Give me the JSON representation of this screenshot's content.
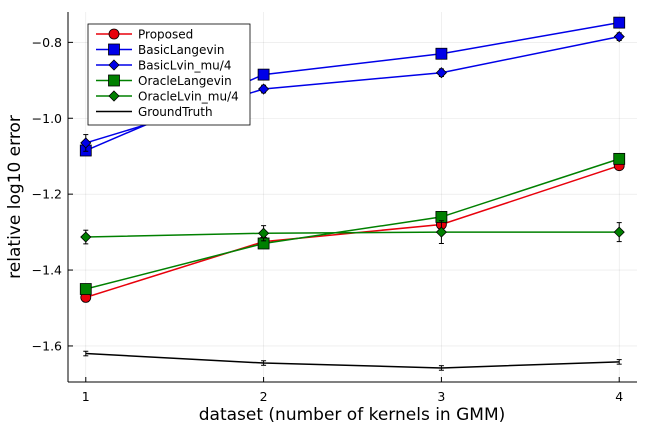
{
  "chart_data": {
    "type": "line",
    "title": "",
    "xlabel": "dataset (number of kernels in GMM)",
    "ylabel": "relative log10 error",
    "x": [
      1,
      2,
      3,
      4
    ],
    "x_ticks": [
      1,
      2,
      3,
      4
    ],
    "x_tick_labels": [
      "1",
      "2",
      "3",
      "4"
    ],
    "xlim": [
      0.9,
      4.1
    ],
    "y_ticks": [
      -1.6,
      -1.4,
      -1.2,
      -1.0,
      -0.8
    ],
    "y_tick_labels": [
      "-1.6",
      "-1.4",
      "-1.2",
      "-1.0",
      "-0.8"
    ],
    "ylim": [
      -1.695,
      -0.72
    ],
    "grid": true,
    "legend_position": "top-left",
    "series": [
      {
        "name": "Proposed",
        "color": "#e8000b",
        "marker": "circle",
        "values": [
          -1.472,
          -1.325,
          -1.28,
          -1.125
        ],
        "err": [
          0.012,
          0.012,
          0.012,
          0.01
        ]
      },
      {
        "name": "BasicLangevin",
        "color": "#0000e8",
        "marker": "square",
        "values": [
          -1.085,
          -0.885,
          -0.83,
          -0.748
        ],
        "err": [
          0.01,
          0.01,
          0.008,
          0.008
        ]
      },
      {
        "name": "BasicLvin_mu/4",
        "color": "#0000e8",
        "marker": "diamond",
        "values": [
          -1.065,
          -0.923,
          -0.88,
          -0.785
        ],
        "err": [
          0.022,
          0.01,
          0.01,
          0.01
        ]
      },
      {
        "name": "OracleLangevin",
        "color": "#008000",
        "marker": "square",
        "values": [
          -1.45,
          -1.33,
          -1.26,
          -1.107
        ],
        "err": [
          0.01,
          0.012,
          0.012,
          0.01
        ]
      },
      {
        "name": "OracleLvin_mu/4",
        "color": "#008000",
        "marker": "diamond",
        "values": [
          -1.313,
          -1.303,
          -1.3,
          -1.3
        ],
        "err": [
          0.018,
          0.02,
          0.03,
          0.025
        ]
      },
      {
        "name": "GroundTruth",
        "color": "#000000",
        "marker": "none",
        "values": [
          -1.62,
          -1.645,
          -1.658,
          -1.642
        ],
        "err": [
          0.006,
          0.006,
          0.006,
          0.006
        ]
      }
    ]
  }
}
